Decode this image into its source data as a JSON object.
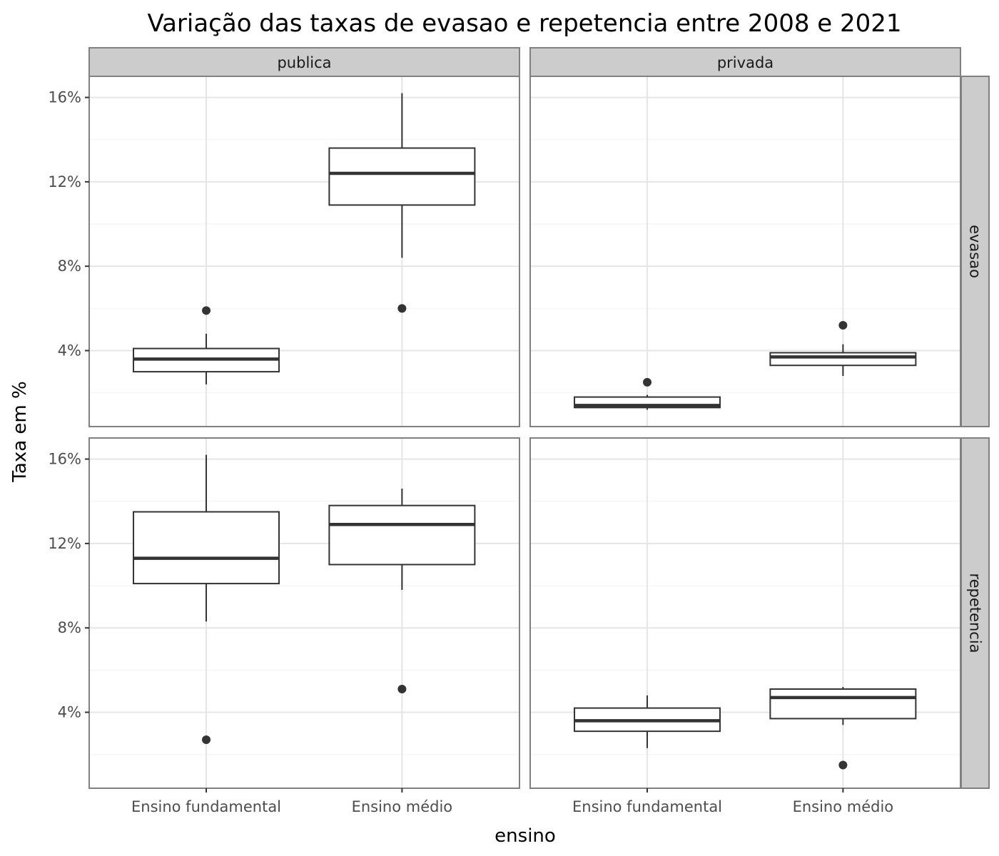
{
  "chart_data": {
    "type": "boxplot",
    "title": "Variação das taxas de evasao e repetencia entre 2008 e 2021",
    "xlabel": "ensino",
    "ylabel": "Taxa em %",
    "column_facets": [
      "publica",
      "privada"
    ],
    "row_facets": [
      "evasao",
      "repetencia"
    ],
    "categories": [
      "Ensino fundamental",
      "Ensino médio"
    ],
    "y_ticks": [
      4,
      8,
      12,
      16
    ],
    "y_tick_labels": [
      "4%",
      "8%",
      "12%",
      "16%"
    ],
    "ylim": [
      0.4,
      17.0
    ],
    "grid": true,
    "panels": [
      {
        "column": "publica",
        "row": "evasao",
        "boxes": [
          {
            "category": "Ensino fundamental",
            "whisker_low": 2.4,
            "q1": 3.0,
            "median": 3.6,
            "q3": 4.1,
            "whisker_high": 4.8,
            "outliers": [
              5.9
            ]
          },
          {
            "category": "Ensino médio",
            "whisker_low": 8.4,
            "q1": 10.9,
            "median": 12.4,
            "q3": 13.6,
            "whisker_high": 16.2,
            "outliers": [
              6.0
            ]
          }
        ]
      },
      {
        "column": "privada",
        "row": "evasao",
        "boxes": [
          {
            "category": "Ensino fundamental",
            "whisker_low": 1.2,
            "q1": 1.3,
            "median": 1.4,
            "q3": 1.8,
            "whisker_high": 1.9,
            "outliers": [
              2.5
            ]
          },
          {
            "category": "Ensino médio",
            "whisker_low": 2.8,
            "q1": 3.3,
            "median": 3.7,
            "q3": 3.9,
            "whisker_high": 4.3,
            "outliers": [
              5.2
            ]
          }
        ]
      },
      {
        "column": "publica",
        "row": "repetencia",
        "boxes": [
          {
            "category": "Ensino fundamental",
            "whisker_low": 8.3,
            "q1": 10.1,
            "median": 11.3,
            "q3": 13.5,
            "whisker_high": 16.2,
            "outliers": [
              2.7
            ]
          },
          {
            "category": "Ensino médio",
            "whisker_low": 9.8,
            "q1": 11.0,
            "median": 12.9,
            "q3": 13.8,
            "whisker_high": 14.6,
            "outliers": [
              5.1
            ]
          }
        ]
      },
      {
        "column": "privada",
        "row": "repetencia",
        "boxes": [
          {
            "category": "Ensino fundamental",
            "whisker_low": 2.3,
            "q1": 3.1,
            "median": 3.6,
            "q3": 4.2,
            "whisker_high": 4.8,
            "outliers": []
          },
          {
            "category": "Ensino médio",
            "whisker_low": 3.4,
            "q1": 3.7,
            "median": 4.7,
            "q3": 5.1,
            "whisker_high": 5.2,
            "outliers": [
              1.5
            ]
          }
        ]
      }
    ]
  }
}
